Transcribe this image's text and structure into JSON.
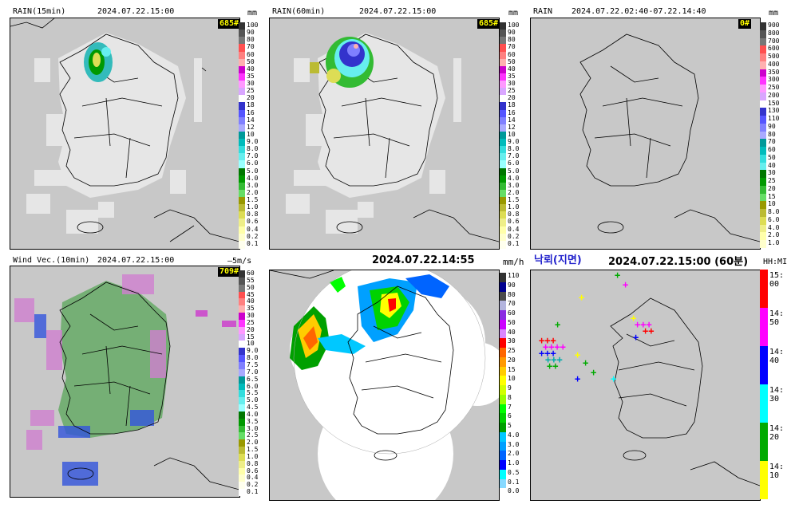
{
  "panels": {
    "rain15": {
      "title": "RAIN(15min)",
      "time": "2024.07.22.15:00",
      "unit": "mm",
      "badge": "685#"
    },
    "rain60": {
      "title": "RAIN(60min)",
      "time": "2024.07.22.15:00",
      "unit": "mm",
      "badge": "685#"
    },
    "rainacc": {
      "title": "RAIN",
      "time": "2024.07.22.02:40-07.22.14:40",
      "unit": "mm",
      "badge": "0#"
    },
    "wind": {
      "title": "Wind Vec.(10min)",
      "time": "2024.07.22.15:00",
      "unit": "5m/s",
      "badge": "709#"
    },
    "radar": {
      "time": "2024.07.22.14:55",
      "unit": "mm/h"
    },
    "lightning": {
      "title": "낙뢰(지면)",
      "time": "2024.07.22.15:00 (60분)",
      "unit": "HH:MI"
    }
  },
  "scales": {
    "rain": {
      "labels": [
        "100",
        "90",
        "80",
        "70",
        "60",
        "50",
        "40",
        "35",
        "30",
        "25",
        "20",
        "18",
        "16",
        "14",
        "12",
        "10",
        "9.0",
        "8.0",
        "7.0",
        "6.0",
        "5.0",
        "4.0",
        "3.0",
        "2.0",
        "1.5",
        "1.0",
        "0.8",
        "0.6",
        "0.4",
        "0.2",
        "0.1"
      ],
      "colors": [
        "#333333",
        "#555555",
        "#777777",
        "#ff5050",
        "#ff8080",
        "#ffb0b0",
        "#cc00cc",
        "#ff33ff",
        "#ff99ff",
        "#d9a6ff",
        "#ffffff",
        "#3333cc",
        "#5555ff",
        "#8080ff",
        "#aaaaff",
        "#009999",
        "#00bbbb",
        "#33dddd",
        "#66eeee",
        "#99ffff",
        "#007700",
        "#009900",
        "#33bb33",
        "#66dd66",
        "#999900",
        "#bbbb33",
        "#dddd55",
        "#eeee88",
        "#ffffaa",
        "#ffffcc",
        "#ffffee"
      ]
    },
    "rainacc": {
      "labels": [
        "900",
        "800",
        "700",
        "600",
        "500",
        "400",
        "350",
        "300",
        "250",
        "200",
        "150",
        "130",
        "110",
        "90",
        "80",
        "70",
        "60",
        "50",
        "40",
        "30",
        "25",
        "20",
        "15",
        "10",
        "8.0",
        "6.0",
        "4.0",
        "2.0",
        "1.0"
      ],
      "colors": [
        "#333333",
        "#555555",
        "#777777",
        "#ff5050",
        "#ff8080",
        "#ffb0b0",
        "#cc00cc",
        "#ff33ff",
        "#ff99ff",
        "#d9a6ff",
        "#ffffff",
        "#3333cc",
        "#5555ff",
        "#8080ff",
        "#aaaaff",
        "#009999",
        "#00bbbb",
        "#33dddd",
        "#66eeee",
        "#007700",
        "#009900",
        "#33bb33",
        "#66dd66",
        "#999900",
        "#bbbb33",
        "#dddd55",
        "#eeee88",
        "#ffffaa",
        "#ffffcc"
      ]
    },
    "wind": {
      "labels": [
        "60",
        "55",
        "50",
        "45",
        "40",
        "35",
        "30",
        "25",
        "20",
        "15",
        "10",
        "9.0",
        "8.0",
        "7.5",
        "7.0",
        "6.5",
        "6.0",
        "5.5",
        "5.0",
        "4.5",
        "4.0",
        "3.5",
        "3.0",
        "2.5",
        "2.0",
        "1.5",
        "1.0",
        "0.8",
        "0.6",
        "0.4",
        "0.2",
        "0.1"
      ],
      "colors": [
        "#333333",
        "#555555",
        "#777777",
        "#ff5050",
        "#ff8080",
        "#ffb0b0",
        "#cc00cc",
        "#ff33ff",
        "#ff99ff",
        "#d9a6ff",
        "#ffffff",
        "#3333cc",
        "#5555ff",
        "#8080ff",
        "#aaaaff",
        "#009999",
        "#00bbbb",
        "#33dddd",
        "#66eeee",
        "#99ffff",
        "#007700",
        "#009900",
        "#33bb33",
        "#66dd66",
        "#999900",
        "#bbbb33",
        "#dddd55",
        "#eeee88",
        "#ffffaa",
        "#ffffcc",
        "#ffffee",
        "#ffffff"
      ]
    },
    "radar": {
      "labels": [
        "110",
        "90",
        "80",
        "70",
        "60",
        "50",
        "40",
        "30",
        "25",
        "20",
        "15",
        "10",
        "9",
        "8",
        "7",
        "6",
        "5",
        "4.0",
        "3.0",
        "2.0",
        "1.0",
        "0.5",
        "0.1",
        "0.0"
      ],
      "colors": [
        "#333333",
        "#000090",
        "#4c4c4c",
        "#b3b4de",
        "#8a2be2",
        "#cc00ff",
        "#da87ff",
        "#ff0000",
        "#ff6600",
        "#ff9900",
        "#ffcc00",
        "#ffff00",
        "#d2ff00",
        "#98ff00",
        "#00ff00",
        "#00d200",
        "#00a000",
        "#00c8ff",
        "#00a0ff",
        "#0064ff",
        "#0000ff",
        "#00ffff",
        "#87d9ff",
        "#ffffff"
      ]
    },
    "lightning": {
      "labels": [
        "15:\n00",
        "14:\n50",
        "14:\n40",
        "14:\n30",
        "14:\n20",
        "14:\n10"
      ],
      "colors": [
        "#ff0000",
        "#ff00ff",
        "#0000ff",
        "#00ffff",
        "#00aa00",
        "#ffff00"
      ]
    }
  }
}
